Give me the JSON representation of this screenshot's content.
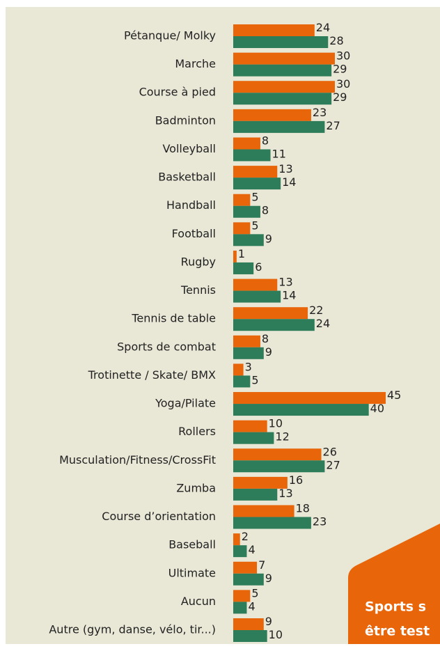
{
  "chart_data": {
    "type": "hbar",
    "categories": [
      "Pétanque/ Molky",
      "Marche",
      "Course à pied",
      "Badminton",
      "Volleyball",
      "Basketball",
      "Handball",
      "Football",
      "Rugby",
      "Tennis",
      "Tennis de table",
      "Sports de combat",
      "Trotinette / Skate/ BMX",
      "Yoga/Pilate",
      "Rollers",
      "Musculation/Fitness/CrossFit",
      "Zumba",
      "Course d’orientation",
      "Baseball",
      "Ultimate",
      "Aucun",
      "Autre (gym, danse, vélo, tir...)"
    ],
    "series": [
      {
        "color": "#e8650a",
        "values": [
          24,
          30,
          30,
          23,
          8,
          13,
          5,
          5,
          1,
          13,
          22,
          8,
          3,
          45,
          10,
          26,
          16,
          18,
          2,
          7,
          5,
          9
        ]
      },
      {
        "color": "#2e7d5a",
        "values": [
          28,
          29,
          29,
          27,
          11,
          14,
          8,
          9,
          6,
          14,
          24,
          9,
          5,
          40,
          12,
          27,
          13,
          23,
          4,
          9,
          4,
          10
        ]
      }
    ],
    "annotations": [
      "Sports s",
      "être test"
    ]
  }
}
